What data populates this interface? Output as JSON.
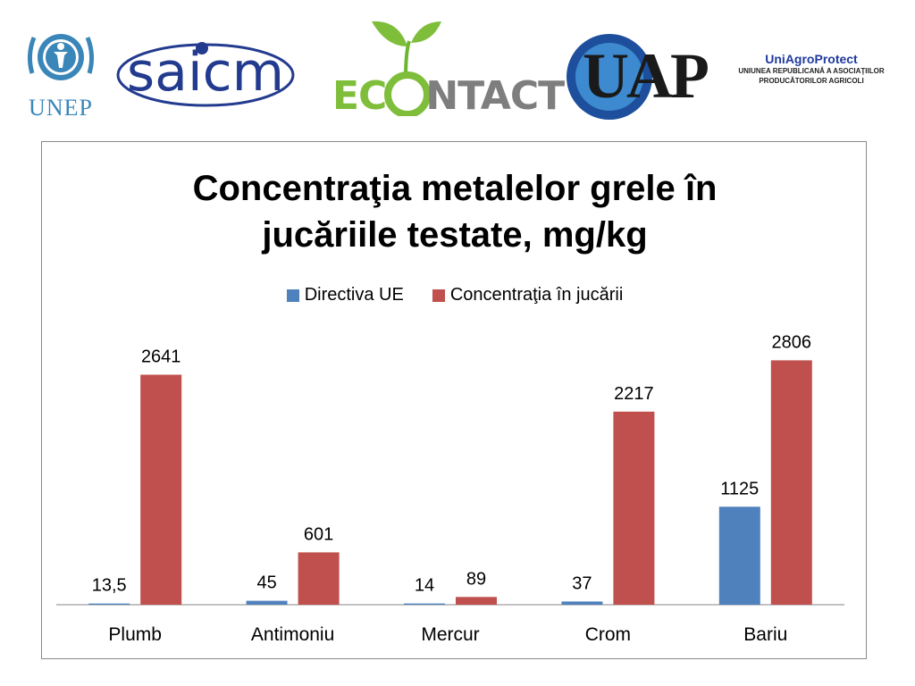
{
  "logos": {
    "unep": "UNEP",
    "saicm": "saicm",
    "econtact_left": "EC",
    "econtact_right": "NTACT",
    "uap": "UAP",
    "uniagro_title": "UniAgroProtect",
    "uniagro_line1": "UNIUNEA REPUBLICANĂ A ASOCIAŢIILOR",
    "uniagro_line2": "PRODUCĂTORILOR AGRICOLI"
  },
  "chart_data": {
    "type": "bar",
    "title_line1": "Concentraţia metalelor grele în",
    "title_line2": "jucăriile testate, mg/kg",
    "categories": [
      "Plumb",
      "Antimoniu",
      "Mercur",
      "Crom",
      "Bariu"
    ],
    "series": [
      {
        "name": "Directiva UE",
        "color": "#4f81bd",
        "values": [
          13.5,
          45,
          14,
          37,
          1125
        ],
        "labels": [
          "13,5",
          "45",
          "14",
          "37",
          "1125"
        ]
      },
      {
        "name": "Concentraţia în jucării",
        "color": "#c0504d",
        "values": [
          2641,
          601,
          89,
          2217,
          2806
        ],
        "labels": [
          "2641",
          "601",
          "89",
          "2217",
          "2806"
        ]
      }
    ],
    "ylim": [
      0,
      3200
    ],
    "legend_position": "top",
    "grid": false
  }
}
